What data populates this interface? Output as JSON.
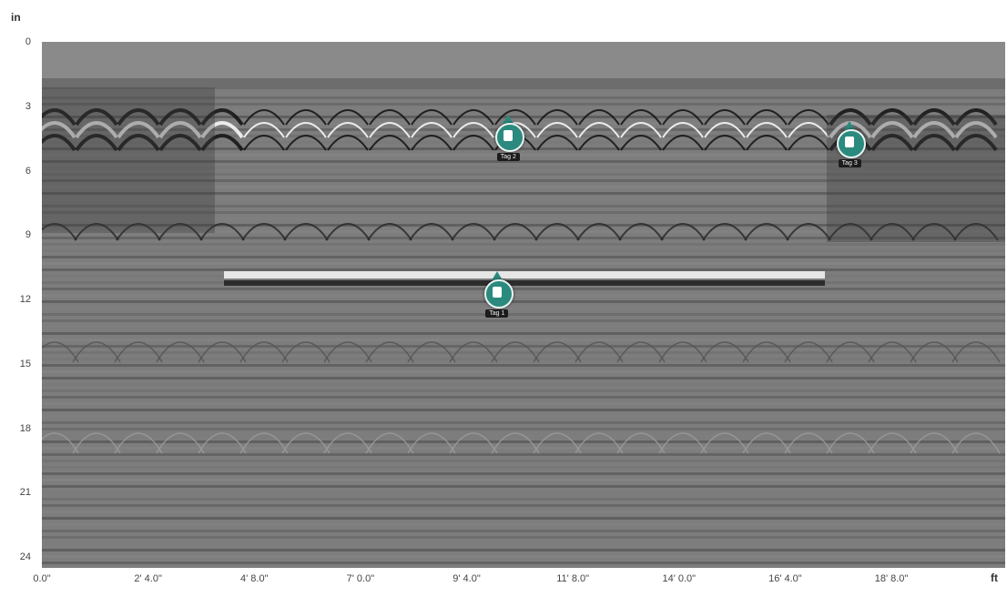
{
  "axes": {
    "depth_unit": "in",
    "distance_unit": "ft",
    "depth_ticks": [
      {
        "value": 0,
        "label": "0"
      },
      {
        "value": 3,
        "label": "3"
      },
      {
        "value": 6,
        "label": "6"
      },
      {
        "value": 9,
        "label": "9"
      },
      {
        "value": 12,
        "label": "12"
      },
      {
        "value": 15,
        "label": "15"
      },
      {
        "value": 18,
        "label": "18"
      },
      {
        "value": 21,
        "label": "21"
      },
      {
        "value": 24,
        "label": "24"
      }
    ],
    "distance_ticks": [
      {
        "value": 0,
        "label": "0.0\""
      },
      {
        "value": 28,
        "label": "2' 4.0\""
      },
      {
        "value": 56,
        "label": "4' 8.0\""
      },
      {
        "value": 84,
        "label": "7' 0.0\""
      },
      {
        "value": 112,
        "label": "9' 4.0\""
      },
      {
        "value": 140,
        "label": "11' 8.0\""
      },
      {
        "value": 168,
        "label": "14' 0.0\""
      },
      {
        "value": 196,
        "label": "16' 4.0\""
      },
      {
        "value": 224,
        "label": "18' 8.0\""
      }
    ],
    "depth_range": [
      0,
      24.5
    ],
    "distance_range": [
      0,
      254
    ]
  },
  "tags": [
    {
      "label": "Tag 2",
      "icon": "rebar-icon",
      "distance": 123,
      "depth": 4.5
    },
    {
      "label": "Tag 1",
      "icon": "rebar-icon",
      "distance": 120,
      "depth": 11.8
    },
    {
      "label": "Tag 3",
      "icon": "conduit-icon",
      "distance": 213,
      "depth": 4.8
    }
  ],
  "colors": {
    "tag_fill": "#2b8a7e",
    "background": "#7d7d7d"
  }
}
